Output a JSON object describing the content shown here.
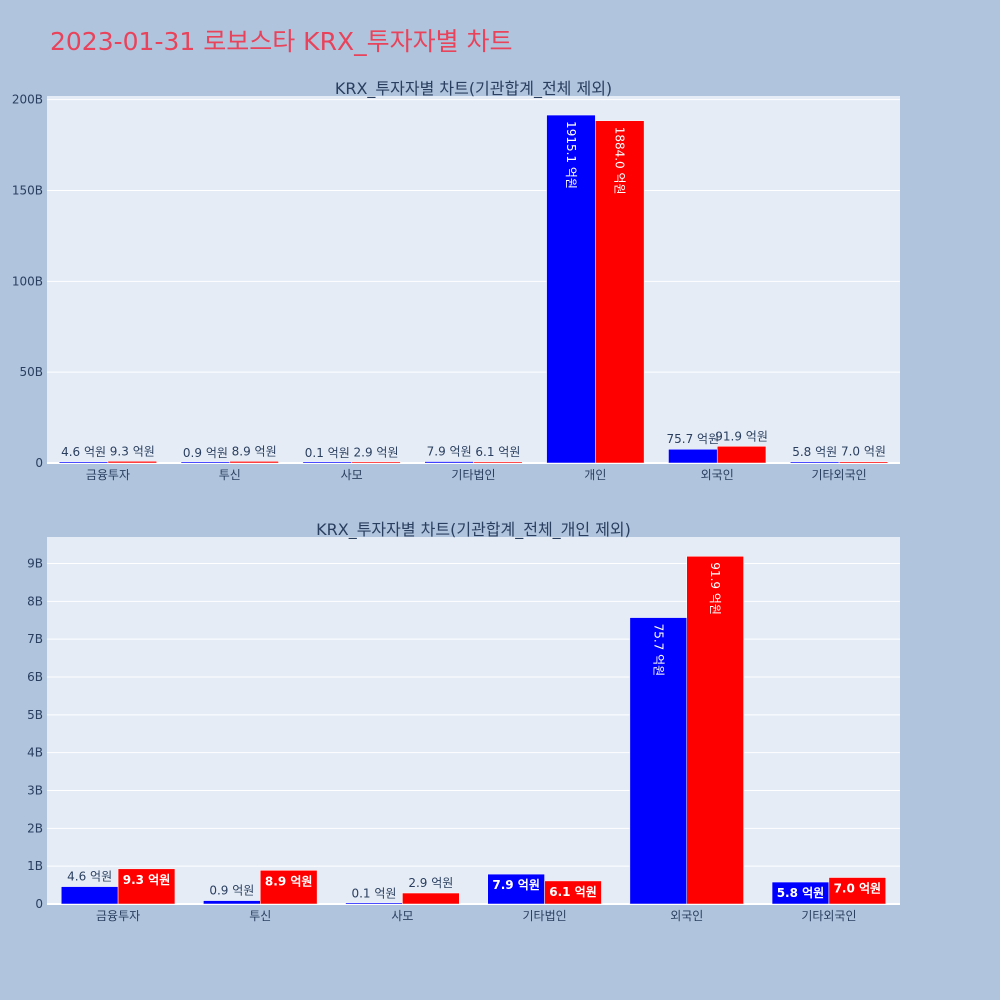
{
  "page_title": "2023-01-31 로보스타 KRX_투자자별 차트",
  "colors": {
    "buy": "#0000ff",
    "sell": "#ff0000",
    "plot_bg": "#e5ecf6",
    "page_bg": "#b0c4de",
    "title": "#e8435a"
  },
  "chart_data": [
    {
      "type": "bar",
      "title": "KRX_투자자별 차트(기관합계_전체 제외)",
      "categories": [
        "금융투자",
        "투신",
        "사모",
        "기타법인",
        "개인",
        "외국인",
        "기타외국인"
      ],
      "series": [
        {
          "values": [
            0.46,
            0.09,
            0.01,
            0.79,
            191.51,
            7.57,
            0.58
          ],
          "labels": [
            "4.6 억원",
            "0.9 억원",
            "0.1 억원",
            "7.9 억원",
            "1915.1 억원",
            "75.7 억원",
            "5.8 억원"
          ]
        },
        {
          "values": [
            0.93,
            0.89,
            0.29,
            0.61,
            188.4,
            9.19,
            0.7
          ],
          "labels": [
            "9.3 억원",
            "8.9 억원",
            "2.9 억원",
            "6.1 억원",
            "1884.0 억원",
            "91.9 억원",
            "7.0 억원"
          ]
        }
      ],
      "yticks": [
        0,
        50,
        100,
        150,
        200
      ],
      "ytick_labels": [
        "0",
        "50B",
        "100B",
        "150B",
        "200B"
      ],
      "ylim": [
        0,
        202
      ],
      "xlabel": "",
      "ylabel": "",
      "legend": "none",
      "grid": true
    },
    {
      "type": "bar",
      "title": "KRX_투자자별 차트(기관합계_전체_개인 제외)",
      "categories": [
        "금융투자",
        "투신",
        "사모",
        "기타법인",
        "외국인",
        "기타외국인"
      ],
      "series": [
        {
          "values": [
            0.46,
            0.09,
            0.01,
            0.79,
            7.57,
            0.58
          ],
          "labels": [
            "4.6 억원",
            "0.9 억원",
            "0.1 억원",
            "7.9 억원",
            "75.7 억원",
            "5.8 억원"
          ]
        },
        {
          "values": [
            0.93,
            0.89,
            0.29,
            0.61,
            9.19,
            0.7
          ],
          "labels": [
            "9.3 억원",
            "8.9 억원",
            "2.9 억원",
            "6.1 억원",
            "91.9 억원",
            "7.0 억원"
          ]
        }
      ],
      "yticks": [
        0,
        1,
        2,
        3,
        4,
        5,
        6,
        7,
        8,
        9
      ],
      "ytick_labels": [
        "0",
        "1B",
        "2B",
        "3B",
        "4B",
        "5B",
        "6B",
        "7B",
        "8B",
        "9B"
      ],
      "ylim": [
        0,
        9.7
      ],
      "xlabel": "",
      "ylabel": "",
      "legend": "none",
      "grid": true
    }
  ]
}
